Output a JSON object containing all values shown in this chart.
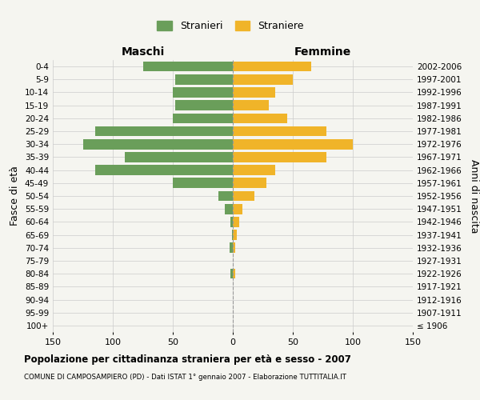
{
  "age_groups": [
    "100+",
    "95-99",
    "90-94",
    "85-89",
    "80-84",
    "75-79",
    "70-74",
    "65-69",
    "60-64",
    "55-59",
    "50-54",
    "45-49",
    "40-44",
    "35-39",
    "30-34",
    "25-29",
    "20-24",
    "15-19",
    "10-14",
    "5-9",
    "0-4"
  ],
  "birth_years": [
    "≤ 1906",
    "1907-1911",
    "1912-1916",
    "1917-1921",
    "1922-1926",
    "1927-1931",
    "1932-1936",
    "1937-1941",
    "1942-1946",
    "1947-1951",
    "1952-1956",
    "1957-1961",
    "1962-1966",
    "1967-1971",
    "1972-1976",
    "1977-1981",
    "1982-1986",
    "1987-1991",
    "1992-1996",
    "1997-2001",
    "2002-2006"
  ],
  "males": [
    0,
    0,
    0,
    0,
    2,
    0,
    3,
    1,
    2,
    7,
    12,
    50,
    115,
    90,
    125,
    115,
    50,
    48,
    50,
    48,
    75
  ],
  "females": [
    0,
    0,
    0,
    0,
    2,
    0,
    2,
    3,
    5,
    8,
    18,
    28,
    35,
    78,
    100,
    78,
    45,
    30,
    35,
    50,
    65
  ],
  "male_color": "#6a9e5a",
  "female_color": "#f0b429",
  "title": "Popolazione per cittadinanza straniera per età e sesso - 2007",
  "subtitle": "COMUNE DI CAMPOSAMPIERO (PD) - Dati ISTAT 1° gennaio 2007 - Elaborazione TUTTITALIA.IT",
  "xlabel_left": "Maschi",
  "xlabel_right": "Femmine",
  "ylabel_left": "Fasce di età",
  "ylabel_right": "Anni di nascita",
  "legend_male": "Stranieri",
  "legend_female": "Straniere",
  "xlim": 150,
  "background_color": "#f5f5f0",
  "grid_color": "#cccccc"
}
